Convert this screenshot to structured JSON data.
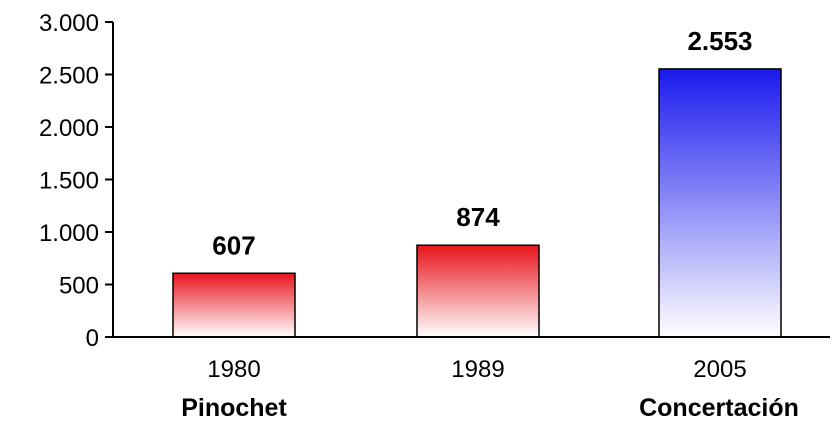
{
  "chart_data": {
    "type": "bar",
    "categories": [
      "1980",
      "1989",
      "2005"
    ],
    "values": [
      607,
      874,
      2553
    ],
    "value_labels": [
      "607",
      "874",
      "2.553"
    ],
    "group_labels": [
      "Pinochet",
      "",
      "Concertación"
    ],
    "ylim": [
      0,
      3000
    ],
    "yticks": [
      0,
      500,
      1000,
      1500,
      2000,
      2500,
      3000
    ],
    "ytick_labels": [
      "0",
      "500",
      "1.000",
      "1.500",
      "2.000",
      "2.500",
      "3.000"
    ],
    "grid": false,
    "legend": "none",
    "colors": {
      "red_top": "#e8141c",
      "red_bottom": "#ffffff",
      "blue_top": "#1a1aee",
      "blue_bottom": "#ffffff",
      "bar_outline": "#000000",
      "axis": "#000000"
    },
    "bar_color_scheme": [
      "red",
      "red",
      "blue"
    ]
  }
}
